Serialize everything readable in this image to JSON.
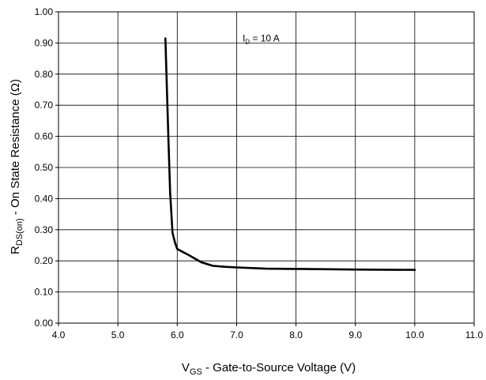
{
  "chart_data": {
    "type": "line",
    "title": "",
    "xlabel": {
      "main": "V",
      "sub": "GS",
      "rest": " - Gate-to-Source Voltage (V)"
    },
    "ylabel": {
      "main": "R",
      "sub": "DS(on)",
      "rest": " - On State Resistance (Ω)"
    },
    "xlim": [
      4.0,
      11.0
    ],
    "ylim": [
      0.0,
      1.0
    ],
    "x_ticks": [
      "4.0",
      "5.0",
      "6.0",
      "7.0",
      "8.0",
      "9.0",
      "10.0",
      "11.0"
    ],
    "y_ticks": [
      "0.00",
      "0.10",
      "0.20",
      "0.30",
      "0.40",
      "0.50",
      "0.60",
      "0.70",
      "0.80",
      "0.90",
      "1.00"
    ],
    "grid": true,
    "annotation": {
      "main": "I",
      "sub": "D",
      "rest": " = 10 A",
      "x": 7.1,
      "y": 0.905
    },
    "series": [
      {
        "color": "#000000",
        "x": [
          5.8,
          5.85,
          5.88,
          5.92,
          5.96,
          6.0,
          6.2,
          6.4,
          6.6,
          6.8,
          7.0,
          7.5,
          8.0,
          9.0,
          10.0
        ],
        "y": [
          0.915,
          0.6,
          0.42,
          0.29,
          0.26,
          0.238,
          0.218,
          0.196,
          0.184,
          0.181,
          0.179,
          0.175,
          0.174,
          0.172,
          0.171
        ]
      }
    ]
  }
}
